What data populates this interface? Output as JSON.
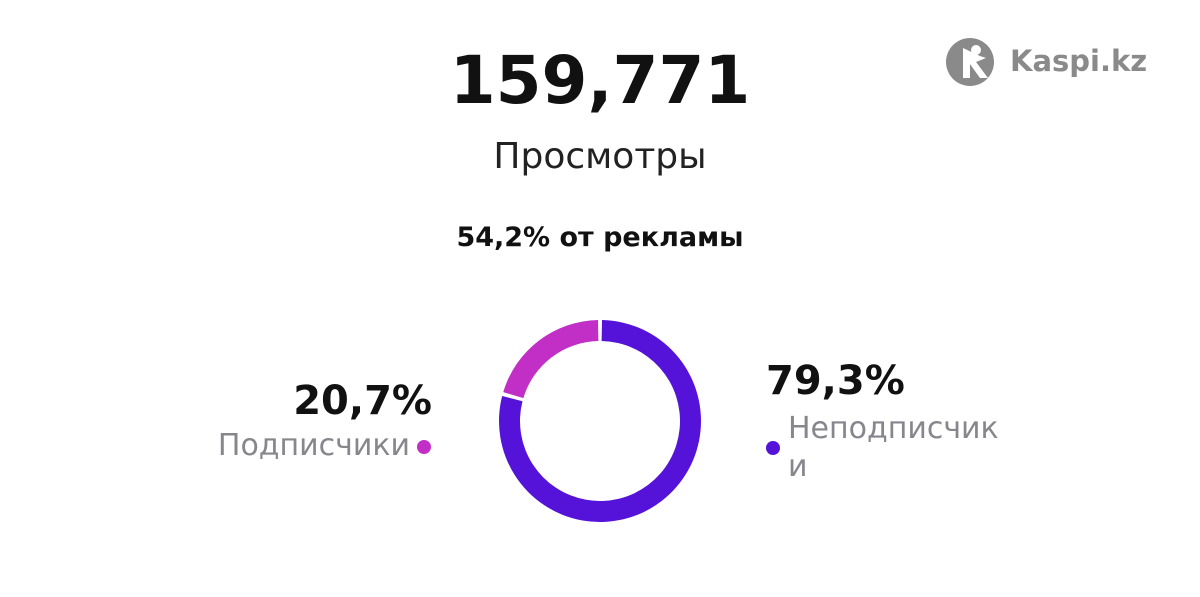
{
  "brand": "Kaspi.kz",
  "stats": {
    "views": "159,771",
    "views_label": "Просмотры",
    "ad_share": "54,2% от рекламы"
  },
  "chart_data": {
    "type": "pie",
    "donut": true,
    "categories": [
      "Подписчики",
      "Неподписчики"
    ],
    "values": [
      20.7,
      79.3
    ],
    "value_labels": [
      "20,7%",
      "79,3%"
    ],
    "colors": [
      "#c12fc6",
      "#5512d8"
    ]
  }
}
